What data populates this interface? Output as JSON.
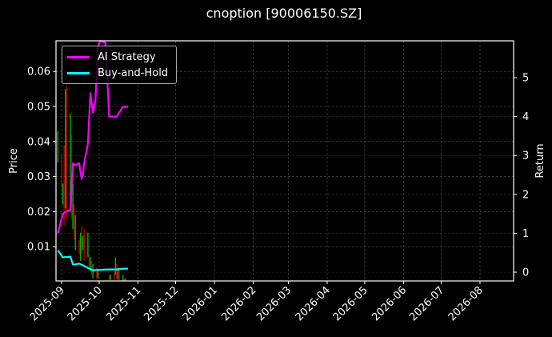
{
  "chart_data": {
    "type": "line",
    "title": "cnoption [90006150.SZ]",
    "xlabel": "",
    "ylabel": "Price",
    "ylabel_right": "Return",
    "x_tick_labels": [
      "2025-09",
      "2025-10",
      "2025-11",
      "2025-12",
      "2026-01",
      "2026-02",
      "2026-03",
      "2026-04",
      "2026-05",
      "2026-06",
      "2026-07",
      "2026-08"
    ],
    "y_ticks_left": [
      0.01,
      0.02,
      0.03,
      0.04,
      0.05,
      0.06
    ],
    "y_ticks_right": [
      0,
      1,
      2,
      3,
      4,
      5
    ],
    "ylim_left": [
      0.0,
      0.069
    ],
    "ylim_right": [
      -0.25,
      5.95
    ],
    "grid": true,
    "legend_position": "upper left",
    "background": "#000000",
    "series": [
      {
        "name": "AI Strategy",
        "axis": "right",
        "color": "#ff00ff",
        "x": [
          "2025-08-29",
          "2025-09-02",
          "2025-09-04",
          "2025-09-08",
          "2025-09-10",
          "2025-09-12",
          "2025-09-15",
          "2025-09-17",
          "2025-09-18",
          "2025-09-19",
          "2025-09-22",
          "2025-09-24",
          "2025-09-26",
          "2025-09-28",
          "2025-09-30",
          "2025-10-02",
          "2025-10-06",
          "2025-10-09",
          "2025-10-10",
          "2025-10-13",
          "2025-10-15",
          "2025-10-20",
          "2025-10-21",
          "2025-10-24"
        ],
        "values": [
          1.0,
          1.5,
          1.55,
          1.6,
          2.8,
          2.75,
          2.8,
          2.4,
          2.5,
          2.8,
          3.3,
          4.6,
          4.1,
          4.4,
          5.8,
          6.0,
          5.9,
          4.0,
          4.0,
          4.0,
          4.0,
          4.25,
          4.25,
          4.25
        ]
      },
      {
        "name": "Buy-and-Hold",
        "axis": "right",
        "color": "#00ffff",
        "x": [
          "2025-08-29",
          "2025-09-02",
          "2025-09-08",
          "2025-09-10",
          "2025-09-12",
          "2025-09-15",
          "2025-09-19",
          "2025-09-22",
          "2025-09-26",
          "2025-10-02",
          "2025-10-09",
          "2025-10-15",
          "2025-10-20",
          "2025-10-24"
        ],
        "values": [
          0.56,
          0.38,
          0.4,
          0.2,
          0.2,
          0.22,
          0.16,
          0.11,
          0.05,
          0.06,
          0.07,
          0.07,
          0.09,
          0.09
        ]
      },
      {
        "name": "Price (candlestick)",
        "axis": "left",
        "type": "candlestick",
        "up_color": "#00ff00",
        "down_color": "#ff0000",
        "x": [
          "2025-08-29",
          "2025-09-01",
          "2025-09-02",
          "2025-09-03",
          "2025-09-04",
          "2025-09-05",
          "2025-09-08",
          "2025-09-09",
          "2025-09-10",
          "2025-09-11",
          "2025-09-12",
          "2025-09-15",
          "2025-09-16",
          "2025-09-17",
          "2025-09-18",
          "2025-09-19",
          "2025-09-22",
          "2025-09-23",
          "2025-09-24",
          "2025-09-25",
          "2025-09-26",
          "2025-09-29",
          "2025-09-30",
          "2025-10-09",
          "2025-10-10",
          "2025-10-13",
          "2025-10-14",
          "2025-10-15",
          "2025-10-16",
          "2025-10-17",
          "2025-10-20",
          "2025-10-21",
          "2025-10-22"
        ],
        "high": [
          0.043,
          0.036,
          0.028,
          0.039,
          0.055,
          0.056,
          0.048,
          0.042,
          0.028,
          0.022,
          0.019,
          0.012,
          0.014,
          0.016,
          0.013,
          0.015,
          0.014,
          0.008,
          0.007,
          0.006,
          0.005,
          0.004,
          0.003,
          0.002,
          0.002,
          0.003,
          0.007,
          0.005,
          0.004,
          0.004,
          0.002,
          0.001,
          0.001
        ],
        "low": [
          0.034,
          0.027,
          0.022,
          0.016,
          0.021,
          0.018,
          0.022,
          0.018,
          0.015,
          0.012,
          0.009,
          0.008,
          0.006,
          0.008,
          0.009,
          0.006,
          0.007,
          0.004,
          0.003,
          0.002,
          0.001,
          0.001,
          0.001,
          0.0005,
          0.0005,
          0.0005,
          0.002,
          0.001,
          0.0005,
          0.0005,
          0.0003,
          0.0002,
          0.0002
        ]
      }
    ]
  },
  "legend": {
    "items": [
      {
        "label": "AI Strategy",
        "color": "#ff00ff"
      },
      {
        "label": "Buy-and-Hold",
        "color": "#00ffff"
      }
    ]
  },
  "axes": {
    "left_label": "Price",
    "right_label": "Return",
    "left_ticks": [
      "0.01",
      "0.02",
      "0.03",
      "0.04",
      "0.05",
      "0.06"
    ],
    "right_ticks": [
      "0",
      "1",
      "2",
      "3",
      "4",
      "5"
    ],
    "x_ticks": [
      "2025-09",
      "2025-10",
      "2025-11",
      "2025-12",
      "2026-01",
      "2026-02",
      "2026-03",
      "2026-04",
      "2026-05",
      "2026-06",
      "2026-07",
      "2026-08"
    ]
  }
}
